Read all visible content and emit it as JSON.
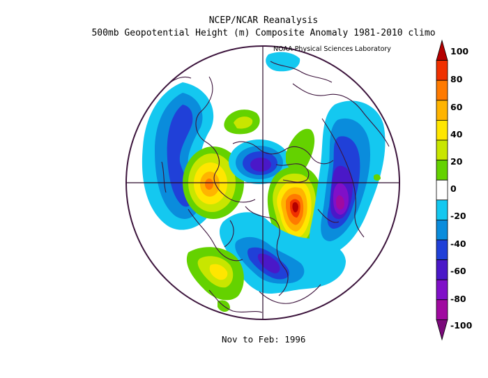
{
  "header": {
    "title_line1": "NCEP/NCAR Reanalysis",
    "title_line2": "500mb Geopotential Height (m) Composite Anomaly 1981-2010 climo",
    "credit": "NOAA Physical Sciences Laboratory"
  },
  "footer": {
    "period": "Nov to Feb: 1996"
  },
  "colorbar": {
    "labels": [
      "100",
      "80",
      "60",
      "40",
      "20",
      "0",
      "-20",
      "-40",
      "-60",
      "-80",
      "-100"
    ],
    "colors": [
      "#b40000",
      "#f03000",
      "#ff7a00",
      "#ffb400",
      "#ffe600",
      "#c8e600",
      "#64d200",
      "#ffffff",
      "#14c8f0",
      "#0a8cdc",
      "#2040d8",
      "#4a18c8",
      "#8010c8",
      "#a00aa0",
      "#7a0a7a"
    ]
  },
  "map": {
    "projection": "north-polar-stereographic",
    "anomalies": [
      {
        "id": "pacific-trough-west",
        "sign": "negative",
        "peak": -40
      },
      {
        "id": "north-atlantic-ridge",
        "sign": "positive",
        "peak": 60
      },
      {
        "id": "siberia-low",
        "sign": "negative",
        "peak": -60
      },
      {
        "id": "europe-ridge",
        "sign": "positive",
        "peak": 100
      },
      {
        "id": "northwest-pacific-low",
        "sign": "negative",
        "peak": -80
      },
      {
        "id": "eastern-north-america-trough",
        "sign": "negative",
        "peak": -60
      },
      {
        "id": "subtropical-atlantic-ridge",
        "sign": "positive",
        "peak": 40
      }
    ]
  }
}
